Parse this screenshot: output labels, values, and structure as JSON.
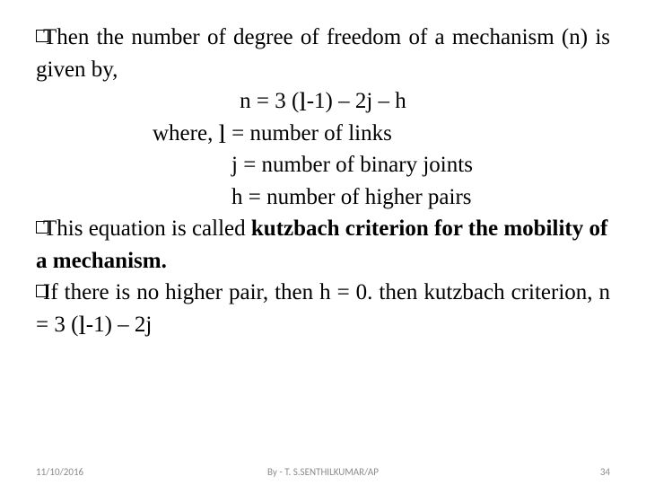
{
  "colors": {
    "background": "#ffffff",
    "text": "#000000",
    "footer_text": "#8b8b8b"
  },
  "typography": {
    "body_font": "Georgia/Times New Roman serif",
    "body_size_pt": 19,
    "footer_font": "Calibri/Arial sans-serif",
    "footer_size_pt": 8,
    "script_l_font": "Brush Script MT cursive"
  },
  "para1_a": "Then   the  number  of  degree  of  freedom  of  a mechanism (n) is given by,",
  "formula_a": "n = 3 (",
  "formula_l": "l",
  "formula_b": "-1) – 2j – h",
  "where_a": "where, ",
  "where_l": "l",
  "where_b": " = number of links",
  "def_j": "j = number of binary joints",
  "def_h": "h = number of higher pairs",
  "para_kutz_a": "This equation is called ",
  "para_kutz_b": "kutzbach criterion for the mobility of a mechanism.",
  "para_if_a": "If   there  is  no  higher  pair,  then  h  =  0.  then kutzbach criterion, n = 3 (",
  "para_if_l": "l",
  "para_if_b": "-1) – 2j",
  "footer": {
    "date": "11/10/2016",
    "author": "By - T. S.SENTHILKUMAR/AP",
    "page": "34"
  }
}
